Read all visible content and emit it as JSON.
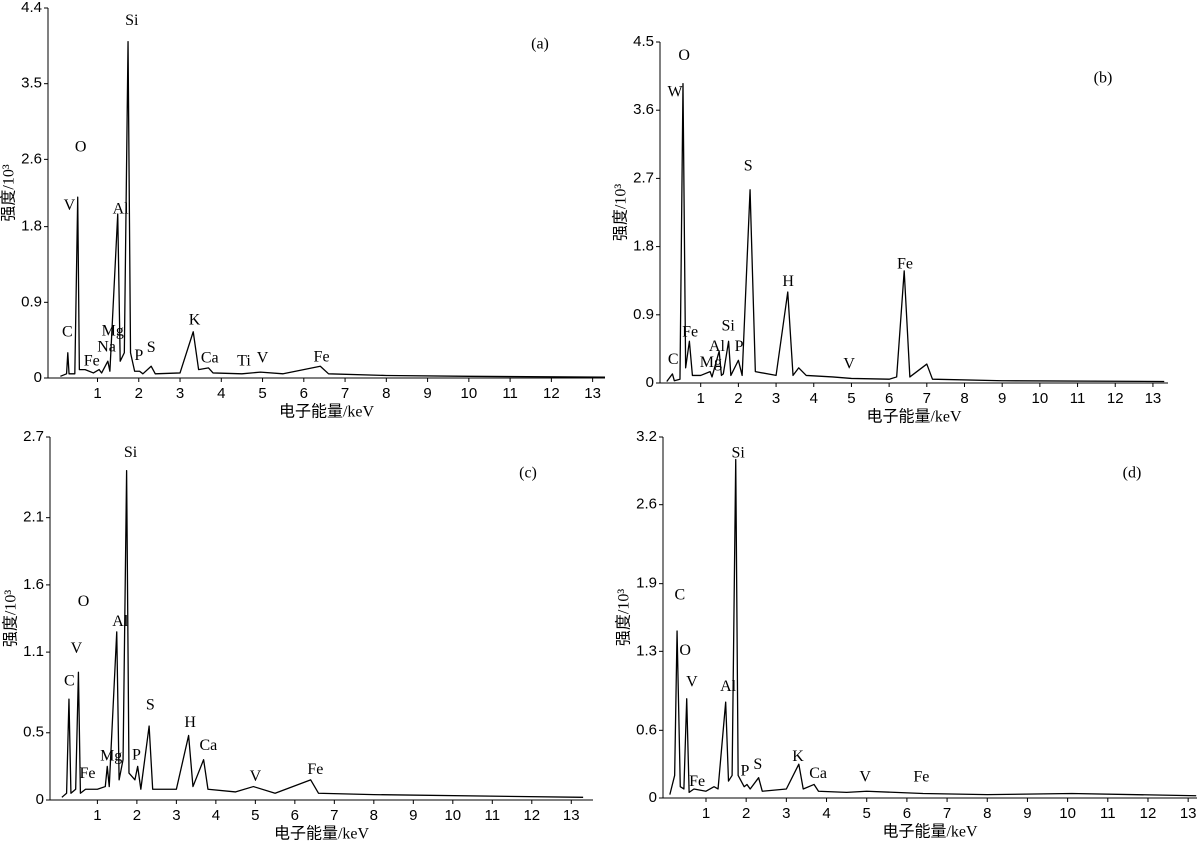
{
  "chart_data": [
    {
      "type": "line",
      "title": "(a)",
      "x_label": "电子能量/keV",
      "y_label": "强度/10³",
      "color": "#000000",
      "xlim": [
        -0.2,
        13.3
      ],
      "xticks": [
        1,
        2,
        3,
        4,
        5,
        6,
        7,
        8,
        9,
        10,
        11,
        12,
        13
      ],
      "ylim": [
        0,
        4.4
      ],
      "yticks": [
        0,
        0.9,
        1.8,
        2.6,
        3.5,
        4.4
      ],
      "x": [
        0.1,
        0.25,
        0.28,
        0.31,
        0.45,
        0.52,
        0.56,
        0.7,
        0.9,
        1.04,
        1.1,
        1.25,
        1.3,
        1.49,
        1.55,
        1.65,
        1.74,
        1.8,
        1.9,
        2.02,
        2.1,
        2.3,
        2.4,
        3.0,
        3.32,
        3.45,
        3.69,
        3.8,
        4.5,
        4.95,
        5.5,
        6.4,
        6.6,
        8,
        10,
        13.3
      ],
      "values": [
        0.02,
        0.05,
        0.3,
        0.05,
        0.05,
        2.15,
        0.1,
        0.1,
        0.06,
        0.1,
        0.06,
        0.2,
        0.08,
        1.95,
        0.2,
        0.3,
        4.0,
        0.3,
        0.08,
        0.08,
        0.05,
        0.14,
        0.05,
        0.06,
        0.55,
        0.1,
        0.12,
        0.06,
        0.05,
        0.07,
        0.05,
        0.14,
        0.05,
        0.03,
        0.02,
        0.01
      ],
      "annotations": [
        {
          "text": "Si",
          "x": 1.83,
          "y": 4.24
        },
        {
          "text": "O",
          "x": 0.59,
          "y": 2.74
        },
        {
          "text": "V",
          "x": 0.32,
          "y": 2.04
        },
        {
          "text": "Al",
          "x": 1.56,
          "y": 2.0
        },
        {
          "text": "C",
          "x": 0.27,
          "y": 0.54
        },
        {
          "text": "Mg",
          "x": 1.37,
          "y": 0.55
        },
        {
          "text": "Na",
          "x": 1.22,
          "y": 0.36
        },
        {
          "text": "Fe",
          "x": 0.86,
          "y": 0.19
        },
        {
          "text": "P",
          "x": 2.0,
          "y": 0.26
        },
        {
          "text": "S",
          "x": 2.3,
          "y": 0.35
        },
        {
          "text": "K",
          "x": 3.35,
          "y": 0.68
        },
        {
          "text": "Ca",
          "x": 3.72,
          "y": 0.23
        },
        {
          "text": "Ti",
          "x": 4.55,
          "y": 0.19
        },
        {
          "text": "V",
          "x": 5.0,
          "y": 0.23
        },
        {
          "text": "Fe",
          "x": 6.43,
          "y": 0.24
        }
      ]
    },
    {
      "type": "line",
      "title": "(b)",
      "x_label": "电子能量/keV",
      "y_label": "强度/10³",
      "color": "#000000",
      "xlim": [
        -0.08,
        13.4
      ],
      "xticks": [
        1,
        2,
        3,
        4,
        5,
        6,
        7,
        8,
        9,
        10,
        11,
        12,
        13
      ],
      "ylim": [
        0,
        4.5
      ],
      "yticks": [
        0,
        0.9,
        1.8,
        2.7,
        3.6,
        4.5
      ],
      "x": [
        0.1,
        0.25,
        0.3,
        0.45,
        0.53,
        0.6,
        0.7,
        0.78,
        1.0,
        1.25,
        1.3,
        1.49,
        1.55,
        1.6,
        1.74,
        1.8,
        2.0,
        2.1,
        2.31,
        2.45,
        3.0,
        3.31,
        3.45,
        3.6,
        3.8,
        4.5,
        5.0,
        6.0,
        6.2,
        6.4,
        6.55,
        7.0,
        7.15,
        9,
        13.3
      ],
      "values": [
        0.02,
        0.12,
        0.03,
        0.05,
        3.95,
        0.2,
        0.55,
        0.1,
        0.1,
        0.15,
        0.08,
        0.42,
        0.1,
        0.12,
        0.55,
        0.1,
        0.3,
        0.1,
        2.55,
        0.15,
        0.1,
        1.2,
        0.1,
        0.2,
        0.1,
        0.08,
        0.06,
        0.05,
        0.08,
        1.48,
        0.08,
        0.25,
        0.05,
        0.03,
        0.02
      ],
      "annotations": [
        {
          "text": "O",
          "x": 0.56,
          "y": 4.31
        },
        {
          "text": "W",
          "x": 0.32,
          "y": 3.83
        },
        {
          "text": "S",
          "x": 2.26,
          "y": 2.85
        },
        {
          "text": "H",
          "x": 3.32,
          "y": 1.33
        },
        {
          "text": "Fe",
          "x": 6.42,
          "y": 1.56
        },
        {
          "text": "Fe",
          "x": 0.72,
          "y": 0.66
        },
        {
          "text": "Si",
          "x": 1.73,
          "y": 0.74
        },
        {
          "text": "Al",
          "x": 1.43,
          "y": 0.47
        },
        {
          "text": "Mg",
          "x": 1.27,
          "y": 0.26
        },
        {
          "text": "P",
          "x": 2.02,
          "y": 0.47
        },
        {
          "text": "C",
          "x": 0.27,
          "y": 0.3
        },
        {
          "text": "V",
          "x": 4.94,
          "y": 0.24
        }
      ]
    },
    {
      "type": "line",
      "title": "(c)",
      "x_label": "电子能量/keV",
      "y_label": "强度/10³",
      "color": "#000000",
      "xlim": [
        -0.2,
        13.55
      ],
      "xticks": [
        1,
        2,
        3,
        4,
        5,
        6,
        7,
        8,
        9,
        10,
        11,
        12,
        13
      ],
      "ylim": [
        0,
        2.7
      ],
      "yticks": [
        0,
        0.5,
        1.1,
        1.6,
        2.1,
        2.7
      ],
      "x": [
        0.1,
        0.22,
        0.28,
        0.33,
        0.45,
        0.52,
        0.57,
        0.7,
        1.0,
        1.2,
        1.25,
        1.3,
        1.49,
        1.55,
        1.65,
        1.74,
        1.8,
        1.95,
        2.02,
        2.1,
        2.31,
        2.4,
        3.0,
        3.31,
        3.42,
        3.69,
        3.8,
        4.5,
        4.95,
        5.5,
        6.4,
        6.6,
        8,
        13.3
      ],
      "values": [
        0.02,
        0.05,
        0.75,
        0.05,
        0.08,
        0.95,
        0.05,
        0.08,
        0.08,
        0.1,
        0.25,
        0.1,
        1.25,
        0.15,
        0.3,
        2.45,
        0.2,
        0.15,
        0.25,
        0.08,
        0.55,
        0.08,
        0.08,
        0.48,
        0.1,
        0.3,
        0.08,
        0.06,
        0.1,
        0.05,
        0.15,
        0.05,
        0.04,
        0.02
      ],
      "annotations": [
        {
          "text": "Si",
          "x": 1.84,
          "y": 2.58
        },
        {
          "text": "O",
          "x": 0.65,
          "y": 1.47
        },
        {
          "text": "Al",
          "x": 1.58,
          "y": 1.32
        },
        {
          "text": "V",
          "x": 0.47,
          "y": 1.12
        },
        {
          "text": "C",
          "x": 0.29,
          "y": 0.88
        },
        {
          "text": "H",
          "x": 3.35,
          "y": 0.57
        },
        {
          "text": "S",
          "x": 2.34,
          "y": 0.7
        },
        {
          "text": "Ca",
          "x": 3.81,
          "y": 0.4
        },
        {
          "text": "Mg",
          "x": 1.35,
          "y": 0.32
        },
        {
          "text": "P",
          "x": 1.99,
          "y": 0.33
        },
        {
          "text": "Fe",
          "x": 0.75,
          "y": 0.19
        },
        {
          "text": "V",
          "x": 5.0,
          "y": 0.17
        },
        {
          "text": "Fe",
          "x": 6.52,
          "y": 0.22
        }
      ]
    },
    {
      "type": "line",
      "title": "(d)",
      "x_label": "电子能量/keV",
      "y_label": "强度/10³",
      "color": "#000000",
      "xlim": [
        -0.07,
        13.22
      ],
      "xticks": [
        1,
        2,
        3,
        4,
        5,
        6,
        7,
        8,
        9,
        10,
        11,
        12,
        13
      ],
      "ylim": [
        0,
        3.2
      ],
      "yticks": [
        0,
        0.6,
        1.3,
        1.9,
        2.6,
        3.2
      ],
      "x": [
        0.1,
        0.22,
        0.28,
        0.36,
        0.45,
        0.52,
        0.58,
        0.7,
        1.0,
        1.2,
        1.3,
        1.49,
        1.56,
        1.65,
        1.74,
        1.8,
        1.95,
        2.02,
        2.1,
        2.31,
        2.4,
        3.0,
        3.31,
        3.42,
        3.69,
        3.8,
        4.5,
        5,
        6.4,
        8,
        10.1,
        13.2
      ],
      "values": [
        0.03,
        0.2,
        1.48,
        0.1,
        0.08,
        0.88,
        0.05,
        0.08,
        0.06,
        0.1,
        0.08,
        0.85,
        0.15,
        0.2,
        3.0,
        0.2,
        0.1,
        0.12,
        0.08,
        0.18,
        0.06,
        0.08,
        0.3,
        0.08,
        0.12,
        0.06,
        0.05,
        0.06,
        0.04,
        0.03,
        0.04,
        0.02
      ],
      "annotations": [
        {
          "text": "Si",
          "x": 1.8,
          "y": 3.05
        },
        {
          "text": "C",
          "x": 0.35,
          "y": 1.79
        },
        {
          "text": "O",
          "x": 0.48,
          "y": 1.3
        },
        {
          "text": "V",
          "x": 0.65,
          "y": 1.02
        },
        {
          "text": "Al",
          "x": 1.55,
          "y": 0.98
        },
        {
          "text": "P",
          "x": 1.97,
          "y": 0.23
        },
        {
          "text": "S",
          "x": 2.29,
          "y": 0.29
        },
        {
          "text": "K",
          "x": 3.29,
          "y": 0.36
        },
        {
          "text": "Ca",
          "x": 3.79,
          "y": 0.21
        },
        {
          "text": "V",
          "x": 4.96,
          "y": 0.18
        },
        {
          "text": "Fe",
          "x": 6.36,
          "y": 0.18
        },
        {
          "text": "Fe",
          "x": 0.78,
          "y": 0.14
        }
      ]
    }
  ]
}
